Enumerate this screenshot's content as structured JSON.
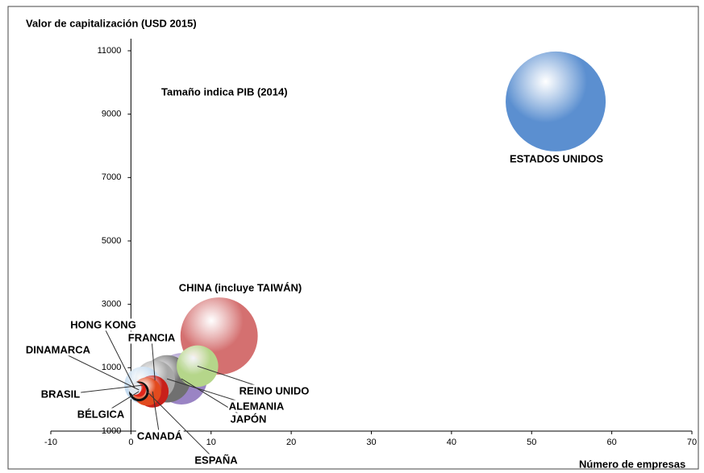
{
  "chart_data": {
    "type": "bubble",
    "y_label": "Valor de capitalización (USD 2015)",
    "x_label": "Número de empresas",
    "annotation": "Tamaño indica PIB (2014)",
    "xlim": [
      -10,
      70
    ],
    "xticks": [
      -10,
      0,
      10,
      20,
      30,
      40,
      50,
      60,
      70
    ],
    "ylim": [
      -1000,
      11000
    ],
    "yticks": [
      -1000,
      1000,
      3000,
      5000,
      7000,
      9000,
      11000
    ],
    "series": [
      {
        "name": "ESTADOS UNIDOS",
        "color": "#5b8fd0",
        "x": [
          53
        ],
        "values": [
          9400
        ],
        "sizes": [
          17.4
        ]
      },
      {
        "name": "CHINA (incluye TAIWÁN)",
        "color": "#d47070",
        "x": [
          11
        ],
        "values": [
          2000
        ],
        "sizes": [
          10.4
        ]
      },
      {
        "name": "REINO UNIDO",
        "color": "#b5d68a",
        "x": [
          8.3
        ],
        "values": [
          1050
        ],
        "sizes": [
          3.0
        ]
      },
      {
        "name": "JAPÓN",
        "color": "#9a84c4",
        "x": [
          6.3
        ],
        "values": [
          650
        ],
        "sizes": [
          4.6
        ]
      },
      {
        "name": "ALEMANIA",
        "color": "#707070",
        "x": [
          4.5
        ],
        "values": [
          650
        ],
        "sizes": [
          3.9
        ]
      },
      {
        "name": "FRANCIA",
        "color": "#a8a8a8",
        "x": [
          3
        ],
        "values": [
          600
        ],
        "sizes": [
          2.8
        ]
      },
      {
        "name": "BRASIL",
        "color": "#c6dcf0",
        "x": [
          1.5
        ],
        "values": [
          450
        ],
        "sizes": [
          2.4
        ]
      },
      {
        "name": "CANADÁ",
        "color": "#c8201a",
        "x": [
          2.7
        ],
        "values": [
          250
        ],
        "sizes": [
          1.8
        ]
      },
      {
        "name": "ESPAÑA",
        "color": "#e24a1e",
        "x": [
          2
        ],
        "values": [
          250
        ],
        "sizes": [
          1.4
        ]
      },
      {
        "name": "BÉLGICA",
        "color": "#111111",
        "x": [
          1
        ],
        "values": [
          250
        ],
        "sizes": [
          0.53
        ]
      },
      {
        "name": "DINAMARCA",
        "color": "#e0251a",
        "x": [
          1
        ],
        "values": [
          300
        ],
        "sizes": [
          0.34
        ]
      },
      {
        "name": "HONG KONG",
        "color": "#dde6ee",
        "x": [
          0.5
        ],
        "values": [
          350
        ],
        "sizes": [
          0.29
        ]
      }
    ]
  }
}
